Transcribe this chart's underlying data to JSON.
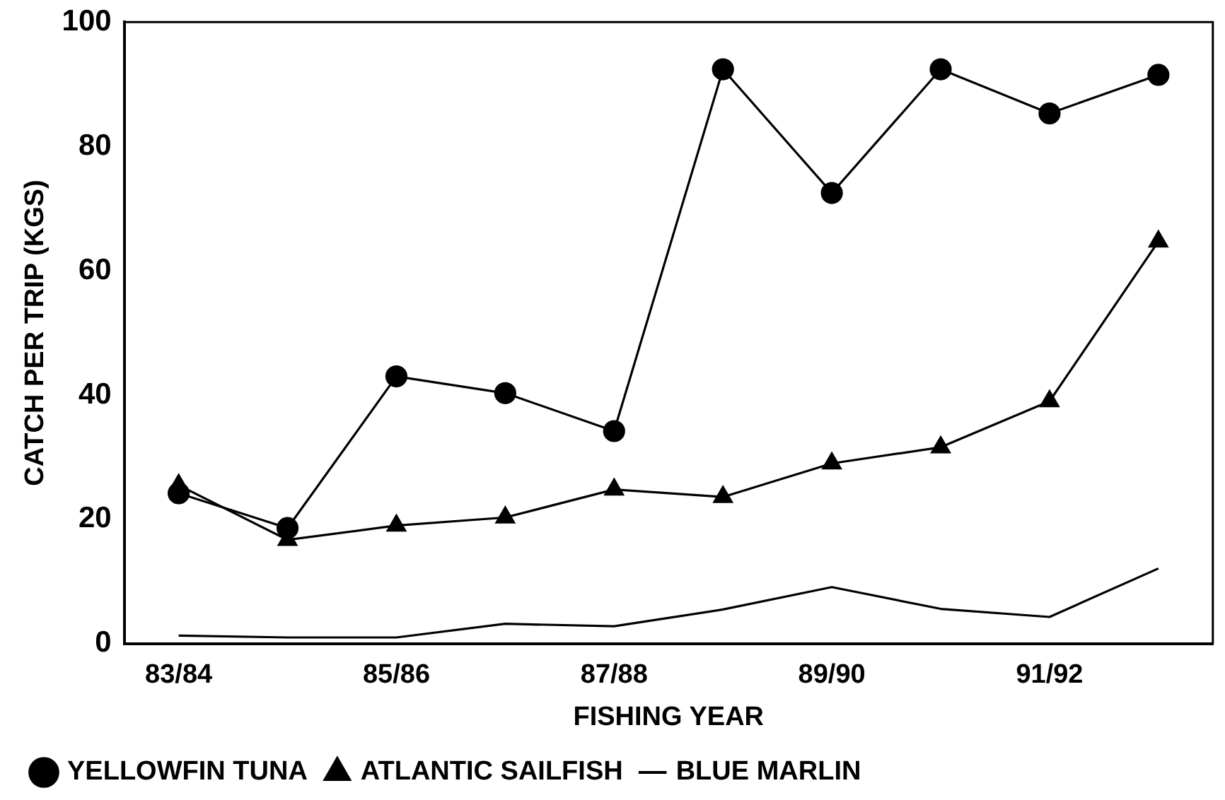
{
  "chart_data": {
    "type": "line",
    "xlabel": "FISHING YEAR",
    "ylabel": "CATCH PER TRIP (KGS)",
    "categories": [
      "83/84",
      null,
      "85/86",
      null,
      "87/88",
      null,
      "89/90",
      null,
      "91/92",
      null
    ],
    "series": [
      {
        "name": "YELLOWFIN TUNA",
        "color": "#000000",
        "marker": "circle",
        "values": [
          24.2,
          18.6,
          43,
          40.3,
          34.2,
          92.4,
          72.5,
          92.4,
          85.3,
          91.5
        ]
      },
      {
        "name": "ATLANTIC SAILFISH",
        "color": "#000000",
        "marker": "triangle",
        "values": [
          25.5,
          16.7,
          19,
          20.3,
          24.8,
          23.6,
          29,
          31.6,
          39,
          64.7
        ]
      },
      {
        "name": "BLUE MARLIN",
        "color": "#000000",
        "marker": "none",
        "values": [
          1.3,
          1,
          1,
          3.2,
          2.8,
          5.5,
          9.1,
          5.6,
          4.3,
          12.1
        ]
      }
    ],
    "ylim": [
      0,
      100
    ],
    "yticks": [
      0,
      20,
      40,
      60,
      80,
      100
    ],
    "grid": false,
    "legend": "bottom left",
    "line_style": "solid"
  }
}
